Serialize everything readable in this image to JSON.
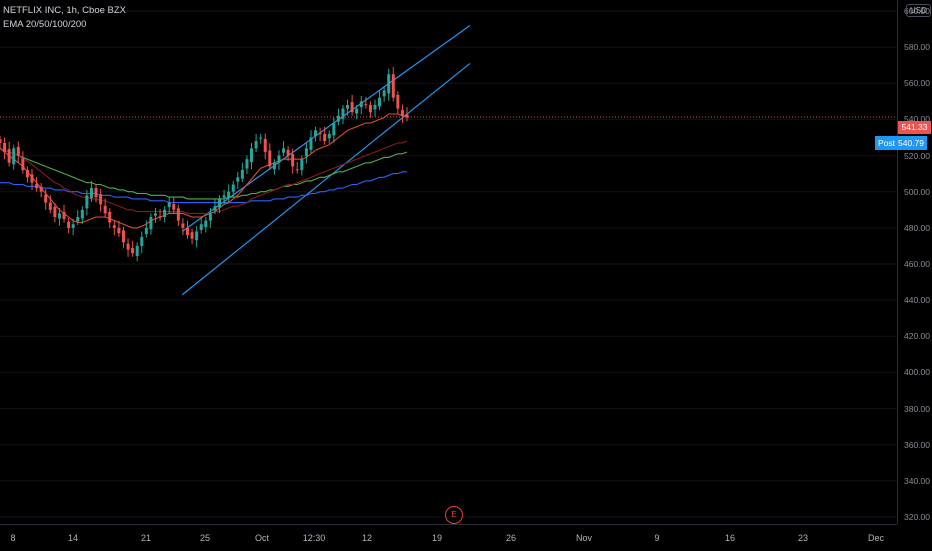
{
  "header": {
    "symbol": "NETFLIX INC, 1h, Cboe BZX",
    "indicator": "EMA 20/50/100/200"
  },
  "price_axis": {
    "currency": "USD",
    "ticks": [
      "600.00",
      "580.00",
      "560.00",
      "540.00",
      "520.00",
      "500.00",
      "480.00",
      "460.00",
      "440.00",
      "420.00",
      "400.00",
      "380.00",
      "360.00",
      "340.00",
      "320.00"
    ],
    "last_price": "541.33",
    "post_label": "Post",
    "post_price": "540.79"
  },
  "time_axis": {
    "ticks": [
      "8",
      "14",
      "21",
      "25",
      "Oct",
      "12:30",
      "12",
      "19",
      "26",
      "Nov",
      "9",
      "16",
      "23",
      "Dec"
    ]
  },
  "earnings_marker": "E",
  "colors": {
    "up": "#26a69a",
    "down": "#ef5350",
    "channel": "#2196f3",
    "ema20": "#e04e2c",
    "ema50": "#8b1a1a",
    "ema100": "#4caf50",
    "ema200": "#2962ff",
    "price_line": "#ef5350"
  },
  "chart_data": {
    "type": "candlestick",
    "series_name": "NETFLIX INC, 1h, Cboe BZX",
    "ylim": [
      315,
      605
    ],
    "close_path": [
      527,
      522,
      516,
      524,
      520,
      512,
      508,
      505,
      502,
      500,
      494,
      490,
      486,
      488,
      485,
      480,
      482,
      486,
      490,
      498,
      502,
      497,
      493,
      488,
      483,
      480,
      477,
      472,
      468,
      466,
      470,
      475,
      480,
      486,
      488,
      486,
      490,
      494,
      490,
      484,
      480,
      476,
      474,
      478,
      482,
      484,
      488,
      492,
      496,
      498,
      500,
      504,
      508,
      512,
      518,
      524,
      528,
      530,
      522,
      514,
      516,
      520,
      524,
      520,
      514,
      512,
      518,
      524,
      530,
      534,
      532,
      528,
      532,
      538,
      542,
      546,
      548,
      544,
      546,
      550,
      548,
      544,
      548,
      552,
      556,
      565,
      552,
      546,
      542,
      541
    ],
    "ema20": [
      524,
      522,
      520,
      518,
      516,
      514,
      511,
      508,
      505,
      502,
      499,
      496,
      493,
      490,
      488,
      486,
      484,
      483,
      483,
      484,
      485,
      486,
      486,
      486,
      485,
      484,
      483,
      482,
      481,
      480,
      480,
      481,
      482,
      484,
      485,
      486,
      487,
      488,
      488,
      488,
      488,
      487,
      486,
      486,
      486,
      487,
      488,
      489,
      491,
      493,
      494,
      496,
      498,
      501,
      504,
      507,
      510,
      513,
      514,
      515,
      516,
      517,
      518,
      518,
      518,
      518,
      518,
      519,
      521,
      523,
      524,
      525,
      526,
      528,
      530,
      532,
      534,
      535,
      536,
      537,
      538,
      538,
      539,
      540,
      541,
      543,
      543,
      543,
      542,
      542
    ],
    "ema50": [
      524,
      523,
      522,
      521,
      520,
      518,
      517,
      515,
      513,
      511,
      509,
      507,
      505,
      504,
      502,
      501,
      499,
      498,
      497,
      497,
      496,
      496,
      495,
      495,
      494,
      493,
      492,
      491,
      490,
      490,
      489,
      489,
      489,
      489,
      489,
      489,
      489,
      489,
      489,
      489,
      489,
      488,
      488,
      488,
      488,
      488,
      488,
      489,
      489,
      490,
      491,
      492,
      492,
      493,
      494,
      496,
      497,
      498,
      499,
      500,
      501,
      502,
      503,
      504,
      504,
      505,
      506,
      507,
      508,
      509,
      510,
      511,
      512,
      513,
      514,
      515,
      516,
      517,
      518,
      519,
      520,
      521,
      522,
      523,
      524,
      525,
      526,
      527,
      527,
      528
    ],
    "ema100": [
      524,
      523,
      522,
      521,
      520,
      519,
      518,
      517,
      516,
      515,
      514,
      513,
      512,
      511,
      510,
      509,
      508,
      507,
      506,
      505,
      505,
      504,
      504,
      503,
      502,
      502,
      501,
      501,
      500,
      500,
      499,
      499,
      499,
      498,
      498,
      498,
      498,
      497,
      497,
      497,
      497,
      496,
      496,
      496,
      496,
      496,
      496,
      496,
      496,
      496,
      497,
      497,
      497,
      498,
      498,
      499,
      499,
      500,
      500,
      501,
      501,
      502,
      503,
      503,
      504,
      504,
      505,
      506,
      506,
      507,
      508,
      508,
      509,
      510,
      511,
      511,
      512,
      513,
      514,
      515,
      516,
      516,
      517,
      518,
      519,
      519,
      520,
      521,
      521,
      522
    ],
    "ema200": [
      505,
      505,
      505,
      504,
      504,
      504,
      503,
      503,
      503,
      502,
      502,
      502,
      501,
      501,
      501,
      500,
      500,
      500,
      499,
      499,
      499,
      499,
      498,
      498,
      498,
      497,
      497,
      497,
      497,
      496,
      496,
      496,
      496,
      495,
      495,
      495,
      495,
      494,
      494,
      494,
      494,
      494,
      494,
      494,
      494,
      494,
      494,
      494,
      494,
      494,
      494,
      494,
      494,
      494,
      494,
      495,
      495,
      495,
      495,
      495,
      496,
      496,
      496,
      497,
      497,
      497,
      498,
      498,
      499,
      499,
      500,
      500,
      501,
      501,
      502,
      502,
      503,
      504,
      504,
      505,
      506,
      506,
      507,
      508,
      508,
      509,
      510,
      510,
      511,
      511
    ],
    "channel_upper": {
      "from": [
        0.12,
        478
      ],
      "to": [
        1.0,
        592
      ]
    },
    "channel_lower": {
      "from": [
        0.12,
        443
      ],
      "to": [
        1.0,
        571
      ]
    },
    "last_price": 541.33
  }
}
